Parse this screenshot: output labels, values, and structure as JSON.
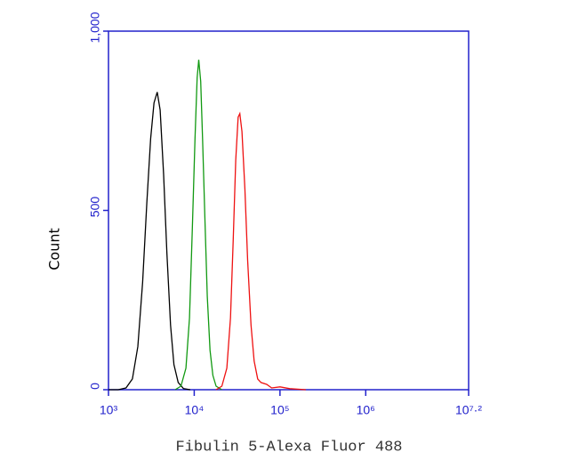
{
  "chart_data": {
    "type": "line",
    "xlabel": "Fibulin 5-Alexa Fluor 488",
    "ylabel": "Count",
    "xscale": "log",
    "xlim": [
      1000,
      15848932
    ],
    "ylim": [
      0,
      1000
    ],
    "xticks": [
      {
        "value": 1000,
        "label": "10³"
      },
      {
        "value": 10000,
        "label": "10⁴"
      },
      {
        "value": 100000,
        "label": "10⁵"
      },
      {
        "value": 1000000,
        "label": "10⁶"
      },
      {
        "value": 15848932,
        "label": "10⁷·²"
      }
    ],
    "yticks": [
      0,
      500,
      {
        "value": 1000,
        "label": "1,000"
      }
    ],
    "axis_color": "#2222cc",
    "series": [
      {
        "color": "#000000",
        "x": [
          1000,
          1300,
          1600,
          1900,
          2200,
          2500,
          2800,
          3100,
          3400,
          3700,
          4000,
          4400,
          4800,
          5300,
          5800,
          6500,
          7500,
          9000
        ],
        "values": [
          0,
          0,
          5,
          30,
          120,
          300,
          520,
          700,
          800,
          830,
          780,
          600,
          380,
          180,
          70,
          20,
          3,
          0
        ]
      },
      {
        "color": "#119911",
        "x": [
          6000,
          7000,
          8000,
          8800,
          9500,
          10200,
          10800,
          11300,
          11900,
          12500,
          13300,
          14200,
          15300,
          16500,
          18000,
          21000
        ],
        "values": [
          0,
          10,
          60,
          200,
          450,
          700,
          870,
          920,
          860,
          700,
          480,
          260,
          110,
          40,
          10,
          0
        ]
      },
      {
        "color": "#ee1111",
        "x": [
          18000,
          21000,
          24000,
          26500,
          28500,
          30500,
          32500,
          34000,
          36000,
          39000,
          42000,
          46000,
          50000,
          55000,
          60000,
          70000,
          80000,
          100000,
          130000,
          200000
        ],
        "values": [
          0,
          10,
          60,
          200,
          420,
          640,
          760,
          770,
          720,
          560,
          360,
          180,
          80,
          30,
          20,
          15,
          5,
          8,
          3,
          0
        ]
      }
    ]
  }
}
